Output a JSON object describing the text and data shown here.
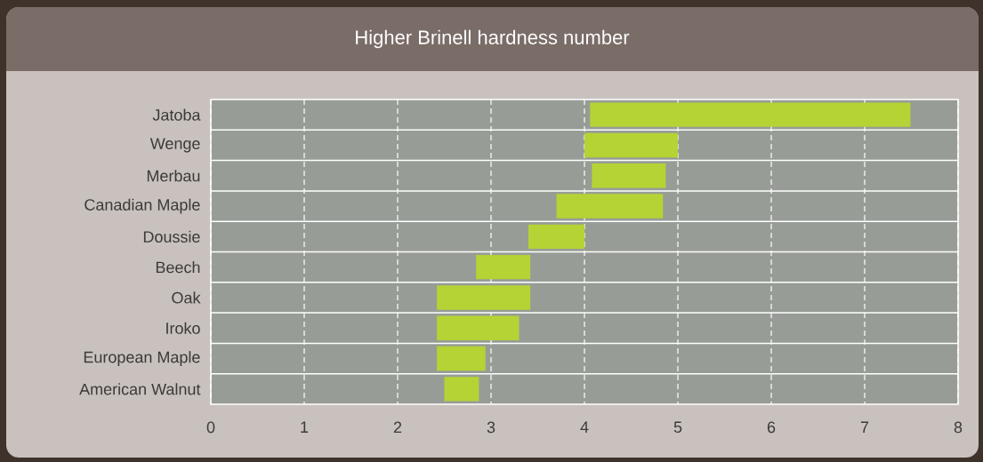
{
  "chart_data": {
    "type": "bar",
    "orientation": "horizontal",
    "title": "Higher Brinell hardness number",
    "categories": [
      "Jatoba",
      "Wenge",
      "Merbau",
      "Canadian Maple",
      "Doussie",
      "Beech",
      "Oak",
      "Iroko",
      "European Maple",
      "American Walnut"
    ],
    "base": [
      4.06,
      4.0,
      4.08,
      3.7,
      3.4,
      2.84,
      2.42,
      2.42,
      2.42,
      2.5
    ],
    "values": [
      3.43,
      1.0,
      0.79,
      1.14,
      0.6,
      0.58,
      1.0,
      0.88,
      0.52,
      0.37
    ],
    "color": "#b5d334",
    "xlim": [
      0,
      8
    ],
    "xticks": [
      0,
      1,
      2,
      3,
      4,
      5,
      6,
      7,
      8
    ],
    "grid": true
  }
}
